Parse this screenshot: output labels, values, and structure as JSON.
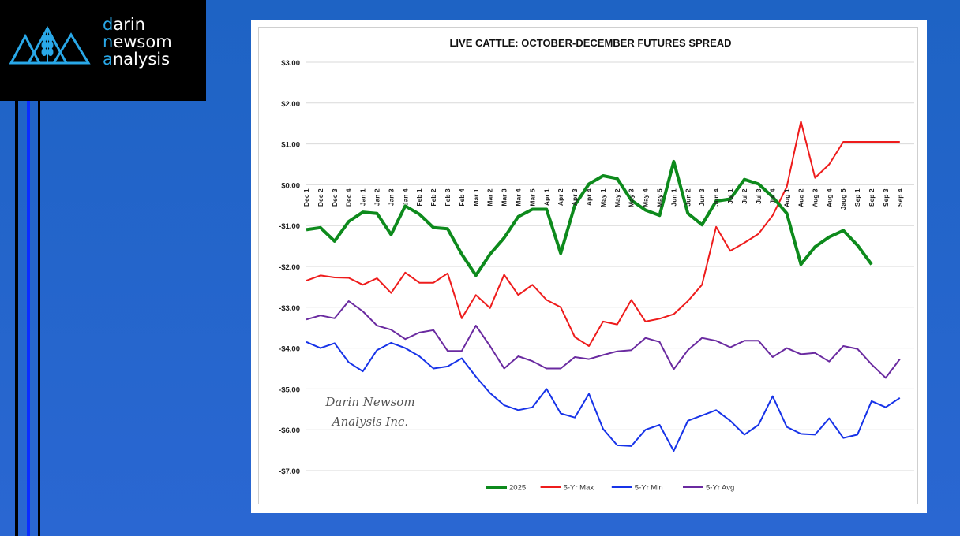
{
  "logo": {
    "lines": [
      {
        "first": "d",
        "rest": "arin"
      },
      {
        "first": "n",
        "rest": "ewsom"
      },
      {
        "first": "a",
        "rest": "nalysis"
      }
    ],
    "accent_color": "#29a8e8"
  },
  "watermark": {
    "line1": "Darin Newsom",
    "line2": "Analysis Inc."
  },
  "chart_data": {
    "type": "line",
    "title": "LIVE CATTLE: OCTOBER-DECEMBER FUTURES SPREAD",
    "xlabel": "",
    "ylabel": "",
    "ylim": [
      -7,
      3
    ],
    "yticks": [
      3,
      2,
      1,
      0,
      -1,
      -2,
      -3,
      -4,
      -5,
      -6,
      -7
    ],
    "ytick_labels": [
      "$3.00",
      "$2.00",
      "$1.00",
      "$0.00",
      "-$1.00",
      "-$2.00",
      "-$3.00",
      "-$4.00",
      "-$5.00",
      "-$6.00",
      "-$7.00"
    ],
    "grid": true,
    "legend": "bottom",
    "categories": [
      "Dec 1",
      "Dec 2",
      "Dec 3",
      "Dec 4",
      "Jan 1",
      "Jan 2",
      "Jan 3",
      "Jan 4",
      "Feb 1",
      "Feb 2",
      "Feb 3",
      "Feb 4",
      "Mar 1",
      "Mar 2",
      "Mar 3",
      "Mar 4",
      "Mar 5",
      "Apr 1",
      "Apr 2",
      "Apr 3",
      "Apr 4",
      "May 1",
      "May 2",
      "May 3",
      "May 4",
      "May 5",
      "Jun 1",
      "Jun 2",
      "Jun 3",
      "Jun 4",
      "Jul 1",
      "Jul 2",
      "Jul 3",
      "Jul 4",
      "Aug 1",
      "Aug 2",
      "Aug 3",
      "Aug 4",
      "Jaug 5",
      "Sep 1",
      "Sep 2",
      "Sep 3",
      "Sep 4"
    ],
    "series": [
      {
        "name": "2025",
        "color": "#0d8a1c",
        "width": 4,
        "values": [
          -1.1,
          -1.05,
          -1.38,
          -0.9,
          -0.67,
          -0.7,
          -1.22,
          -0.52,
          -0.72,
          -1.05,
          -1.08,
          -1.7,
          -2.22,
          -1.7,
          -1.3,
          -0.78,
          -0.6,
          -0.6,
          -1.68,
          -0.5,
          0.02,
          0.22,
          0.15,
          -0.38,
          -0.62,
          -0.75,
          0.57,
          -0.7,
          -0.98,
          -0.4,
          -0.35,
          0.13,
          0.02,
          -0.3,
          -0.7,
          -1.95,
          -1.52,
          -1.28,
          -1.12,
          -1.48,
          -1.95,
          null,
          null
        ]
      },
      {
        "name": "5-Yr Max",
        "color": "#ee1c1c",
        "width": 2,
        "values": [
          -2.35,
          -2.22,
          -2.27,
          -2.28,
          -2.45,
          -2.29,
          -2.65,
          -2.15,
          -2.4,
          -2.4,
          -2.17,
          -3.27,
          -2.7,
          -3.02,
          -2.2,
          -2.7,
          -2.45,
          -2.82,
          -3.0,
          -3.73,
          -3.95,
          -3.35,
          -3.42,
          -2.82,
          -3.35,
          -3.28,
          -3.17,
          -2.85,
          -2.45,
          -1.03,
          -1.62,
          -1.42,
          -1.2,
          -0.75,
          -0.05,
          1.55,
          0.17,
          0.5,
          1.05,
          1.05,
          1.05,
          1.05,
          1.05
        ]
      },
      {
        "name": "5-Yr Min",
        "color": "#1733e8",
        "width": 2,
        "values": [
          -3.85,
          -4.0,
          -3.88,
          -4.35,
          -4.57,
          -4.05,
          -3.87,
          -4.0,
          -4.2,
          -4.5,
          -4.45,
          -4.25,
          -4.7,
          -5.1,
          -5.4,
          -5.52,
          -5.45,
          -5.0,
          -5.6,
          -5.7,
          -5.12,
          -5.98,
          -6.38,
          -6.4,
          -6.0,
          -5.88,
          -6.52,
          -5.78,
          -5.65,
          -5.52,
          -5.78,
          -6.12,
          -5.88,
          -5.18,
          -5.93,
          -6.1,
          -6.12,
          -5.72,
          -6.2,
          -6.12,
          -5.3,
          -5.45,
          -5.22
        ]
      },
      {
        "name": "5-Yr Avg",
        "color": "#6a2aa0",
        "width": 2,
        "values": [
          -3.3,
          -3.2,
          -3.27,
          -2.85,
          -3.1,
          -3.45,
          -3.55,
          -3.78,
          -3.62,
          -3.56,
          -4.07,
          -4.07,
          -3.45,
          -3.95,
          -4.5,
          -4.2,
          -4.32,
          -4.5,
          -4.5,
          -4.22,
          -4.27,
          -4.17,
          -4.08,
          -4.05,
          -3.75,
          -3.85,
          -4.52,
          -4.05,
          -3.75,
          -3.82,
          -3.98,
          -3.82,
          -3.82,
          -4.22,
          -4.0,
          -4.15,
          -4.12,
          -4.33,
          -3.95,
          -4.02,
          -4.4,
          -4.73,
          -4.27
        ]
      }
    ]
  }
}
